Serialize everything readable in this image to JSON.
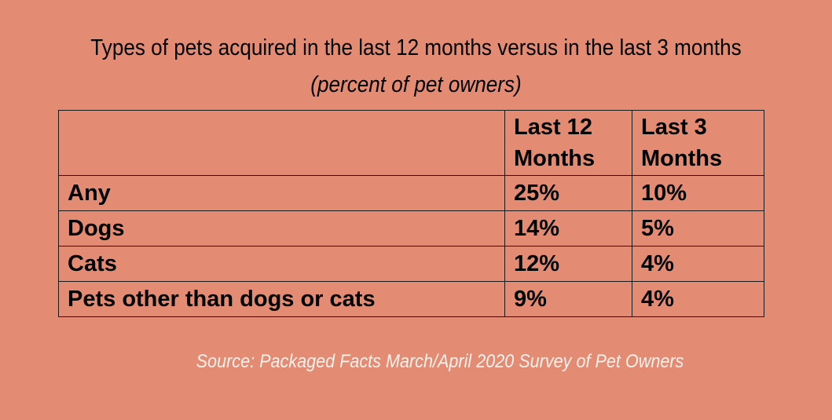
{
  "chart_data": {
    "type": "table",
    "title": "Types of pets acquired in the last 12 months versus in the last 3 months",
    "subtitle": "(percent of pet owners)",
    "columns": [
      "",
      "Last 12 Months",
      "Last 3 Months"
    ],
    "rows": [
      {
        "label": "Any",
        "values": [
          "25%",
          "10%"
        ]
      },
      {
        "label": "Dogs",
        "values": [
          "14%",
          "5%"
        ]
      },
      {
        "label": "Cats",
        "values": [
          "12%",
          "4%"
        ]
      },
      {
        "label": "Pets other than dogs or cats",
        "values": [
          "9%",
          "4%"
        ]
      }
    ],
    "source": "Source: Packaged Facts March/April 2020 Survey of Pet Owners"
  },
  "colors": {
    "background": "#e48b73",
    "source_text": "#fdf1ec"
  }
}
